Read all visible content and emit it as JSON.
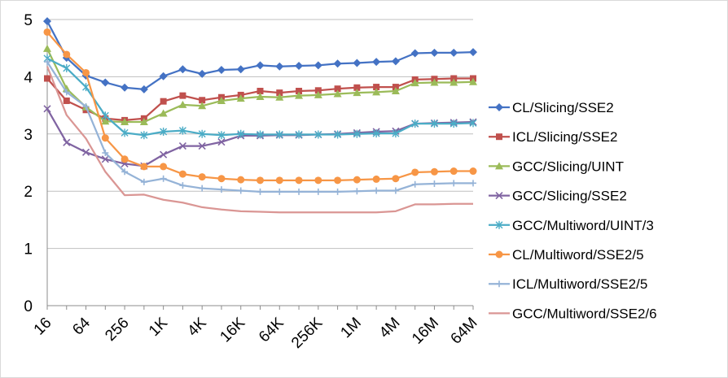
{
  "chart_data": {
    "type": "line",
    "title": "",
    "xlabel": "",
    "ylabel": "",
    "x": [
      "16",
      "32",
      "64",
      "128",
      "256",
      "512",
      "1K",
      "2K",
      "4K",
      "8K",
      "16K",
      "32K",
      "64K",
      "128K",
      "256K",
      "512K",
      "1M",
      "2M",
      "4M",
      "8M",
      "16M",
      "32M",
      "64M"
    ],
    "x_tick_labels": [
      "16",
      "64",
      "256",
      "1K",
      "4K",
      "16K",
      "64K",
      "256K",
      "1M",
      "4M",
      "16M",
      "64M"
    ],
    "ylim": [
      0,
      5
    ],
    "y_ticks": [
      0,
      1,
      2,
      3,
      4,
      5
    ],
    "grid": "horizontal",
    "legend_position": "right",
    "series": [
      {
        "name": "CL/Slicing/SSE2",
        "color": "#4472C4",
        "marker": "diamond",
        "values": [
          4.97,
          4.33,
          4.02,
          3.9,
          3.81,
          3.78,
          4.01,
          4.13,
          4.05,
          4.12,
          4.13,
          4.2,
          4.18,
          4.19,
          4.2,
          4.23,
          4.24,
          4.26,
          4.27,
          4.41,
          4.42,
          4.42,
          4.43
        ]
      },
      {
        "name": "ICL/Slicing/SSE2",
        "color": "#C0504D",
        "marker": "square",
        "values": [
          3.97,
          3.58,
          3.42,
          3.27,
          3.24,
          3.27,
          3.57,
          3.67,
          3.59,
          3.64,
          3.68,
          3.75,
          3.72,
          3.75,
          3.76,
          3.79,
          3.81,
          3.82,
          3.82,
          3.95,
          3.96,
          3.97,
          3.97
        ]
      },
      {
        "name": "GCC/Slicing/UINT",
        "color": "#9BBB59",
        "marker": "triangle",
        "values": [
          4.49,
          3.79,
          3.47,
          3.22,
          3.21,
          3.21,
          3.36,
          3.51,
          3.49,
          3.58,
          3.62,
          3.65,
          3.64,
          3.67,
          3.68,
          3.7,
          3.72,
          3.73,
          3.75,
          3.89,
          3.9,
          3.9,
          3.91
        ]
      },
      {
        "name": "GCC/Slicing/SSE2",
        "color": "#8064A2",
        "marker": "x",
        "values": [
          3.44,
          2.85,
          2.68,
          2.56,
          2.48,
          2.44,
          2.64,
          2.79,
          2.79,
          2.86,
          2.97,
          2.97,
          2.98,
          2.98,
          2.99,
          3.0,
          3.02,
          3.04,
          3.05,
          3.18,
          3.19,
          3.2,
          3.21
        ]
      },
      {
        "name": "GCC/Multiword/UINT/3",
        "color": "#4BACC6",
        "marker": "star",
        "values": [
          4.32,
          4.15,
          3.82,
          3.32,
          3.02,
          2.98,
          3.04,
          3.06,
          3.0,
          2.98,
          3.0,
          2.99,
          2.99,
          2.99,
          2.99,
          2.99,
          3.0,
          3.01,
          3.01,
          3.18,
          3.18,
          3.18,
          3.19
        ]
      },
      {
        "name": "CL/Multiword/SSE2/5",
        "color": "#F79646",
        "marker": "circle",
        "values": [
          4.78,
          4.39,
          4.07,
          2.93,
          2.56,
          2.43,
          2.43,
          2.3,
          2.25,
          2.22,
          2.2,
          2.19,
          2.19,
          2.19,
          2.19,
          2.19,
          2.2,
          2.21,
          2.22,
          2.33,
          2.34,
          2.35,
          2.35
        ]
      },
      {
        "name": "ICL/Multiword/SSE2/5",
        "color": "#95B3D7",
        "marker": "plus",
        "values": [
          4.26,
          3.73,
          3.48,
          2.67,
          2.34,
          2.16,
          2.22,
          2.1,
          2.05,
          2.03,
          2.01,
          1.99,
          1.99,
          1.99,
          1.99,
          1.99,
          2.0,
          2.01,
          2.01,
          2.12,
          2.13,
          2.14,
          2.14
        ]
      },
      {
        "name": "GCC/Multiword/SSE2/6",
        "color": "#DA9694",
        "marker": "none",
        "values": [
          4.18,
          3.33,
          2.92,
          2.34,
          1.93,
          1.94,
          1.85,
          1.8,
          1.72,
          1.68,
          1.65,
          1.64,
          1.63,
          1.63,
          1.63,
          1.63,
          1.63,
          1.63,
          1.65,
          1.77,
          1.77,
          1.78,
          1.78
        ]
      }
    ]
  }
}
